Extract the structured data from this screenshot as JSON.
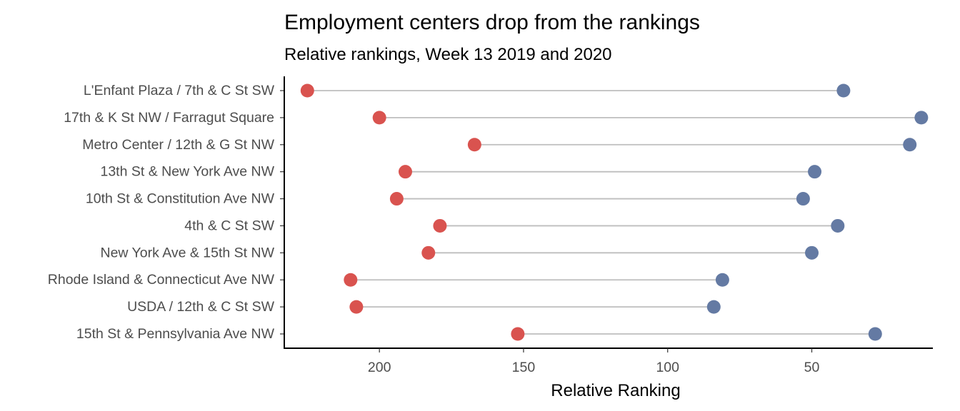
{
  "chart_data": {
    "type": "dumbbell",
    "title": "Employment centers drop from the rankings",
    "subtitle": "Relative rankings, Week 13 2019 and 2020",
    "xlabel": "Relative Ranking",
    "ylabel": "",
    "x_reversed": true,
    "xlim": [
      233,
      8
    ],
    "xticks": [
      200,
      150,
      100,
      50
    ],
    "grid": false,
    "legend": "none",
    "colors": {
      "2020": "#d9534f",
      "2019": "#647aa3",
      "segment": "#bebebe",
      "axis": "#000000"
    },
    "categories": [
      "L'Enfant Plaza / 7th & C St SW",
      "17th & K St NW / Farragut Square",
      "Metro Center / 12th & G St NW",
      "13th St & New York Ave NW",
      "10th St & Constitution Ave NW",
      "4th & C St SW",
      "New York Ave & 15th St NW",
      "Rhode Island & Connecticut Ave NW",
      "USDA / 12th & C St SW",
      "15th St & Pennsylvania Ave NW"
    ],
    "series": [
      {
        "key": "2020",
        "values": [
          225,
          200,
          167,
          191,
          194,
          179,
          183,
          210,
          208,
          152
        ]
      },
      {
        "key": "2019",
        "values": [
          39,
          12,
          16,
          49,
          53,
          41,
          50,
          81,
          84,
          28
        ]
      }
    ]
  }
}
